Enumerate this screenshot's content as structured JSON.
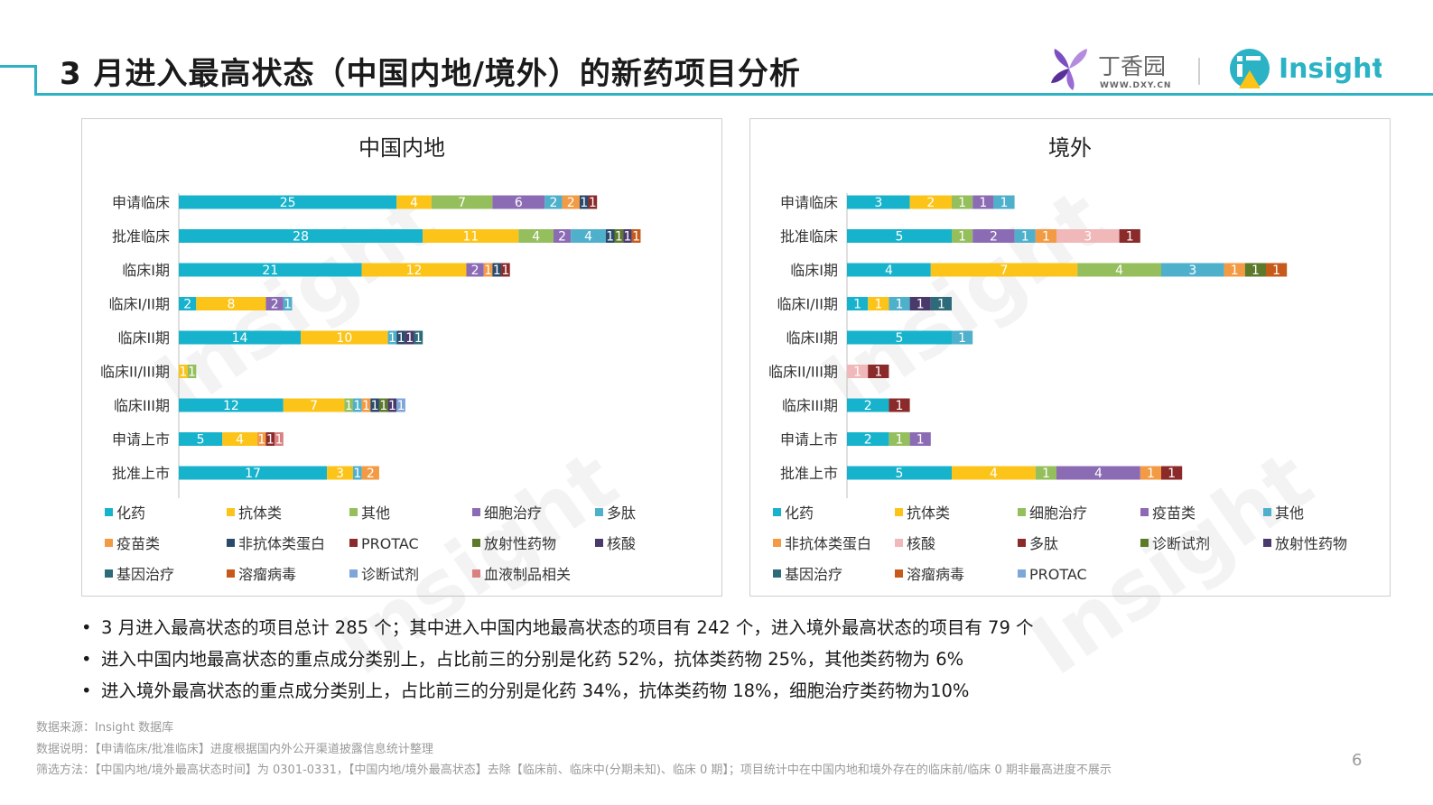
{
  "header": {
    "title": "3 月进入最高状态（中国内地/境外）的新药项目分析",
    "brand_dxy_name": "丁香园",
    "brand_dxy_url": "WWW.DXY.CN",
    "brand_insight": "Insight",
    "accent_color": "#2bb3c5"
  },
  "watermark": "Insight",
  "chart_data": [
    {
      "type": "bar",
      "orientation": "horizontal",
      "stacked": true,
      "title": "中国内地",
      "categories": [
        "申请临床",
        "批准临床",
        "临床I期",
        "临床I/II期",
        "临床II期",
        "临床II/III期",
        "临床III期",
        "申请上市",
        "批准上市"
      ],
      "series": [
        {
          "name": "化药",
          "color": "#17b3cc",
          "values": [
            25,
            28,
            21,
            2,
            14,
            0,
            12,
            5,
            17
          ]
        },
        {
          "name": "抗体类",
          "color": "#fcc419",
          "values": [
            4,
            11,
            12,
            8,
            10,
            1,
            7,
            4,
            3
          ]
        },
        {
          "name": "其他",
          "color": "#94bf5c",
          "values": [
            7,
            4,
            0,
            0,
            0,
            1,
            1,
            0,
            0
          ]
        },
        {
          "name": "细胞治疗",
          "color": "#8c6bb5",
          "values": [
            6,
            2,
            2,
            2,
            0,
            0,
            0,
            0,
            0
          ]
        },
        {
          "name": "多肽",
          "color": "#4fb0cc",
          "values": [
            2,
            4,
            0,
            1,
            1,
            0,
            1,
            0,
            1
          ]
        },
        {
          "name": "疫苗类",
          "color": "#f39a44",
          "values": [
            2,
            0,
            1,
            0,
            0,
            0,
            1,
            1,
            2
          ]
        },
        {
          "name": "非抗体类蛋白",
          "color": "#2b4a6b",
          "values": [
            1,
            1,
            1,
            0,
            1,
            0,
            1,
            0,
            0
          ]
        },
        {
          "name": "PROTAC",
          "color": "#8b2a2a",
          "values": [
            1,
            0,
            1,
            0,
            0,
            0,
            0,
            1,
            0
          ]
        },
        {
          "name": "放射性药物",
          "color": "#5c7a2a",
          "values": [
            0,
            1,
            0,
            0,
            0,
            0,
            1,
            0,
            0
          ]
        },
        {
          "name": "核酸",
          "color": "#4a3a6b",
          "values": [
            0,
            1,
            0,
            0,
            1,
            0,
            1,
            0,
            0
          ]
        },
        {
          "name": "基因治疗",
          "color": "#2e6b7a",
          "values": [
            0,
            0,
            0,
            0,
            1,
            0,
            0,
            0,
            0
          ]
        },
        {
          "name": "溶瘤病毒",
          "color": "#c65a1a",
          "values": [
            0,
            1,
            0,
            0,
            0,
            0,
            0,
            0,
            0
          ]
        },
        {
          "name": "诊断试剂",
          "color": "#7ea6d8",
          "values": [
            0,
            0,
            0,
            0,
            0,
            0,
            1,
            0,
            0
          ]
        },
        {
          "name": "血液制品相关",
          "color": "#d98080",
          "values": [
            0,
            0,
            0,
            0,
            0,
            0,
            0,
            1,
            0
          ]
        }
      ],
      "legend_position": "bottom"
    },
    {
      "type": "bar",
      "orientation": "horizontal",
      "stacked": true,
      "title": "境外",
      "categories": [
        "申请临床",
        "批准临床",
        "临床I期",
        "临床I/II期",
        "临床II期",
        "临床II/III期",
        "临床III期",
        "申请上市",
        "批准上市"
      ],
      "series": [
        {
          "name": "化药",
          "color": "#17b3cc",
          "values": [
            3,
            5,
            4,
            1,
            5,
            0,
            2,
            2,
            5
          ]
        },
        {
          "name": "抗体类",
          "color": "#fcc419",
          "values": [
            2,
            0,
            7,
            1,
            0,
            0,
            0,
            0,
            4
          ]
        },
        {
          "name": "细胞治疗",
          "color": "#94bf5c",
          "values": [
            1,
            1,
            4,
            0,
            0,
            0,
            0,
            1,
            1
          ]
        },
        {
          "name": "疫苗类",
          "color": "#8c6bb5",
          "values": [
            1,
            2,
            0,
            0,
            0,
            0,
            0,
            1,
            4
          ]
        },
        {
          "name": "其他",
          "color": "#4fb0cc",
          "values": [
            1,
            1,
            3,
            1,
            1,
            0,
            0,
            0,
            0
          ]
        },
        {
          "name": "非抗体类蛋白",
          "color": "#f39a44",
          "values": [
            0,
            1,
            1,
            0,
            0,
            0,
            0,
            0,
            1
          ]
        },
        {
          "name": "核酸",
          "color": "#f0b8b8",
          "values": [
            0,
            3,
            0,
            0,
            0,
            1,
            0,
            0,
            0
          ]
        },
        {
          "name": "多肽",
          "color": "#8b2a2a",
          "values": [
            0,
            1,
            0,
            0,
            0,
            1,
            1,
            0,
            1
          ]
        },
        {
          "name": "诊断试剂",
          "color": "#5c7a2a",
          "values": [
            0,
            0,
            1,
            0,
            0,
            0,
            0,
            0,
            0
          ]
        },
        {
          "name": "放射性药物",
          "color": "#4a3a6b",
          "values": [
            0,
            0,
            0,
            1,
            0,
            0,
            0,
            0,
            0
          ]
        },
        {
          "name": "基因治疗",
          "color": "#2e6b7a",
          "values": [
            0,
            0,
            0,
            1,
            0,
            0,
            0,
            0,
            0
          ]
        },
        {
          "name": "溶瘤病毒",
          "color": "#c65a1a",
          "values": [
            0,
            0,
            1,
            0,
            0,
            0,
            0,
            0,
            0
          ]
        },
        {
          "name": "PROTAC",
          "color": "#7ea6d8",
          "values": [
            0,
            0,
            0,
            0,
            0,
            0,
            0,
            0,
            0
          ]
        }
      ],
      "legend_position": "bottom"
    }
  ],
  "bullets": [
    "3 月进入最高状态的项目总计 285 个；其中进入中国内地最高状态的项目有 242 个，进入境外最高状态的项目有 79 个",
    "进入中国内地最高状态的重点成分类别上，占比前三的分别是化药 52%，抗体类药物 25%，其他类药物为 6%",
    "进入境外最高状态的重点成分类别上，占比前三的分别是化药 34%，抗体类药物 18%，细胞治疗类药物为10%"
  ],
  "notes": [
    "数据来源：Insight 数据库",
    "数据说明：【申请临床/批准临床】进度根据国内外公开渠道披露信息统计整理",
    "筛选方法：【中国内地/境外最高状态时间】为 0301-0331，【中国内地/境外最高状态】去除【临床前、临床中(分期未知)、临床 0 期】；项目统计中在中国内地和境外存在的临床前/临床 0 期非最高进度不展示"
  ],
  "page_number": "6"
}
